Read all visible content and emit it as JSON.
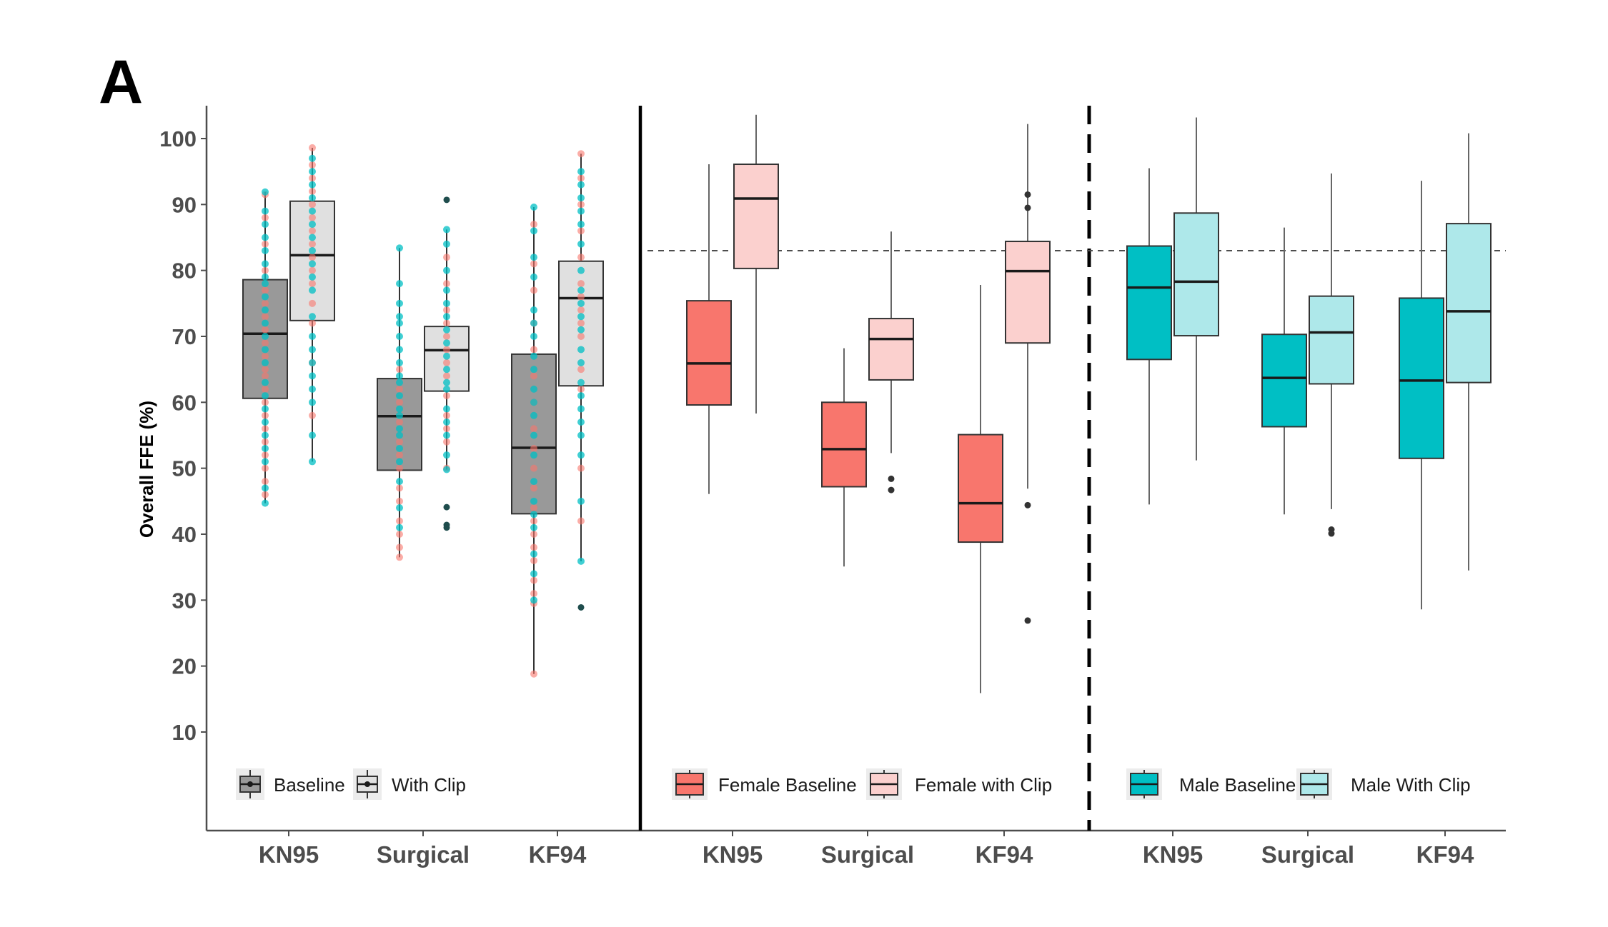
{
  "figure": {
    "panel_label": "A"
  },
  "chart_data": {
    "type": "boxplot",
    "title": "",
    "xlabel": "",
    "ylabel": "Overall FFE (%)",
    "ylim": [
      -5,
      105
    ],
    "yticks": [
      10,
      20,
      30,
      40,
      50,
      60,
      70,
      80,
      90,
      100
    ],
    "grid": false,
    "reference_line": {
      "value": 83,
      "style": "dashed",
      "panels": [
        "female",
        "male"
      ]
    },
    "categories": [
      "KN95",
      "Surgical",
      "KF94"
    ],
    "panels": [
      {
        "id": "overall",
        "separator_after": "solid",
        "legend": {
          "position": "bottom-left",
          "items": [
            {
              "label": "Baseline",
              "fill": "#999999"
            },
            {
              "label": "With Clip",
              "fill": "#e0e0e0"
            }
          ]
        },
        "point_colors": {
          "Female": "#F8766D",
          "Male": "#00BFC4"
        },
        "series": [
          {
            "name": "Baseline",
            "fill": "#999999",
            "boxes": [
              {
                "category": "KN95",
                "whisker_low": 44.7,
                "q1": 60.6,
                "median": 70.4,
                "q3": 78.6,
                "whisker_high": 91.9,
                "outliers": []
              },
              {
                "category": "Surgical",
                "whisker_low": 36.5,
                "q1": 49.7,
                "median": 57.9,
                "q3": 63.6,
                "whisker_high": 83.4,
                "outliers": []
              },
              {
                "category": "KF94",
                "whisker_low": 18.8,
                "q1": 43.1,
                "median": 53.1,
                "q3": 67.3,
                "whisker_high": 89.6,
                "outliers": []
              }
            ],
            "points": [
              {
                "category": "KN95",
                "Female": [
                  46,
                  48,
                  50,
                  52,
                  54,
                  56,
                  58,
                  60,
                  62,
                  64,
                  65,
                  67,
                  69,
                  71,
                  73,
                  75,
                  77,
                  80,
                  84,
                  88,
                  91.5
                ],
                "Male": [
                  44.7,
                  47,
                  51,
                  53,
                  55,
                  57,
                  59,
                  61,
                  63,
                  66,
                  68,
                  70,
                  72,
                  74,
                  76,
                  78,
                  79,
                  81,
                  83,
                  85,
                  87,
                  89,
                  91.9
                ]
              },
              {
                "category": "Surgical",
                "Female": [
                  36.5,
                  38,
                  40,
                  42,
                  45,
                  47,
                  50,
                  52,
                  54,
                  57,
                  60,
                  62,
                  65
                ],
                "Male": [
                  41,
                  44,
                  48,
                  51,
                  53,
                  55,
                  56,
                  58,
                  59,
                  61,
                  63,
                  64,
                  66,
                  68,
                  70,
                  72,
                  73,
                  75,
                  78,
                  83.4
                ]
              },
              {
                "category": "KF94",
                "Female": [
                  18.8,
                  29.5,
                  31,
                  33,
                  36,
                  38,
                  40,
                  42,
                  44,
                  47,
                  50,
                  53,
                  56,
                  60,
                  64,
                  68,
                  72,
                  77,
                  81,
                  87
                ],
                "Male": [
                  30,
                  34,
                  37,
                  41,
                  43,
                  45,
                  48,
                  52,
                  55,
                  58,
                  60,
                  62,
                  65,
                  67,
                  70,
                  72,
                  74,
                  79,
                  82,
                  86,
                  89.6
                ]
              }
            ]
          },
          {
            "name": "With Clip",
            "fill": "#e0e0e0",
            "boxes": [
              {
                "category": "KN95",
                "whisker_low": 51.0,
                "q1": 72.4,
                "median": 82.3,
                "q3": 90.5,
                "whisker_high": 98.6,
                "outliers": []
              },
              {
                "category": "Surgical",
                "whisker_low": 49.8,
                "q1": 61.7,
                "median": 67.9,
                "q3": 71.5,
                "whisker_high": 86.2,
                "outliers": [
                  90.7,
                  44.1,
                  41.4,
                  41.0
                ]
              },
              {
                "category": "KF94",
                "whisker_low": 35.9,
                "q1": 62.5,
                "median": 75.8,
                "q3": 81.4,
                "whisker_high": 97.7,
                "outliers": [
                  28.9
                ]
              }
            ],
            "points": [
              {
                "category": "KN95",
                "Female": [
                  58,
                  66,
                  72,
                  75,
                  78,
                  80,
                  82,
                  84,
                  86,
                  88,
                  90,
                  92,
                  94,
                  96,
                  98.6
                ],
                "Male": [
                  51,
                  55,
                  60,
                  62,
                  64,
                  66,
                  68,
                  70,
                  73,
                  77,
                  79,
                  81,
                  83,
                  85,
                  87,
                  89,
                  91,
                  93,
                  95,
                  97
                ]
              },
              {
                "category": "Surgical",
                "Female": [
                  50,
                  54,
                  56,
                  58,
                  61,
                  64,
                  66,
                  68,
                  70,
                  72,
                  74,
                  78,
                  82
                ],
                "Male": [
                  49.8,
                  52,
                  55,
                  57,
                  59,
                  62,
                  63,
                  65,
                  67,
                  69,
                  71,
                  73,
                  75,
                  77,
                  80,
                  84,
                  86.2
                ]
              },
              {
                "category": "KF94",
                "Female": [
                  42,
                  50,
                  62,
                  65,
                  70,
                  72,
                  74,
                  76,
                  78,
                  82,
                  86,
                  90,
                  94,
                  97.7
                ],
                "Male": [
                  35.9,
                  45,
                  52,
                  55,
                  57,
                  59,
                  61,
                  63,
                  66,
                  68,
                  71,
                  73,
                  75,
                  77,
                  80,
                  84,
                  87,
                  89,
                  91,
                  93,
                  95
                ]
              }
            ]
          }
        ]
      },
      {
        "id": "female",
        "separator_after": "dashed",
        "legend": {
          "position": "bottom-left",
          "items": [
            {
              "label": "Female Baseline",
              "fill": "#F8766D"
            },
            {
              "label": "Female with Clip",
              "fill": "#FBD0CE"
            }
          ]
        },
        "series": [
          {
            "name": "Female Baseline",
            "fill": "#F8766D",
            "boxes": [
              {
                "category": "KN95",
                "whisker_low": 46.1,
                "q1": 59.6,
                "median": 65.9,
                "q3": 75.4,
                "whisker_high": 96.1,
                "outliers": []
              },
              {
                "category": "Surgical",
                "whisker_low": 35.1,
                "q1": 47.2,
                "median": 52.9,
                "q3": 60.0,
                "whisker_high": 68.2,
                "outliers": []
              },
              {
                "category": "KF94",
                "whisker_low": 15.9,
                "q1": 38.8,
                "median": 44.7,
                "q3": 55.1,
                "whisker_high": 77.8,
                "outliers": []
              }
            ]
          },
          {
            "name": "Female with Clip",
            "fill": "#FBD0CE",
            "boxes": [
              {
                "category": "KN95",
                "whisker_low": 58.3,
                "q1": 80.3,
                "median": 90.9,
                "q3": 96.1,
                "whisker_high": 103.6,
                "outliers": []
              },
              {
                "category": "Surgical",
                "whisker_low": 52.3,
                "q1": 63.4,
                "median": 69.6,
                "q3": 72.7,
                "whisker_high": 85.9,
                "outliers": [
                  48.4,
                  46.7
                ]
              },
              {
                "category": "KF94",
                "whisker_low": 46.9,
                "q1": 69.0,
                "median": 79.9,
                "q3": 84.4,
                "whisker_high": 102.2,
                "outliers": [
                  91.5,
                  89.5,
                  44.4,
                  26.9
                ]
              }
            ]
          }
        ]
      },
      {
        "id": "male",
        "separator_after": "none",
        "legend": {
          "position": "bottom-left",
          "items": [
            {
              "label": "Male Baseline",
              "fill": "#00BFC4"
            },
            {
              "label": "Male With Clip",
              "fill": "#AEE8EA"
            }
          ]
        },
        "series": [
          {
            "name": "Male Baseline",
            "fill": "#00BFC4",
            "boxes": [
              {
                "category": "KN95",
                "whisker_low": 44.5,
                "q1": 66.5,
                "median": 77.4,
                "q3": 83.7,
                "whisker_high": 95.5,
                "outliers": []
              },
              {
                "category": "Surgical",
                "whisker_low": 43.0,
                "q1": 56.3,
                "median": 63.7,
                "q3": 70.3,
                "whisker_high": 86.5,
                "outliers": []
              },
              {
                "category": "KF94",
                "whisker_low": 28.6,
                "q1": 51.5,
                "median": 63.3,
                "q3": 75.8,
                "whisker_high": 93.6,
                "outliers": []
              }
            ]
          },
          {
            "name": "Male With Clip",
            "fill": "#AEE8EA",
            "boxes": [
              {
                "category": "KN95",
                "whisker_low": 51.2,
                "q1": 70.1,
                "median": 78.3,
                "q3": 88.7,
                "whisker_high": 103.2,
                "outliers": []
              },
              {
                "category": "Surgical",
                "whisker_low": 43.8,
                "q1": 62.8,
                "median": 70.6,
                "q3": 76.1,
                "whisker_high": 94.7,
                "outliers": [
                  40.7,
                  40.1
                ]
              },
              {
                "category": "KF94",
                "whisker_low": 34.5,
                "q1": 63.0,
                "median": 73.8,
                "q3": 87.1,
                "whisker_high": 100.8,
                "outliers": []
              }
            ]
          }
        ]
      }
    ]
  }
}
